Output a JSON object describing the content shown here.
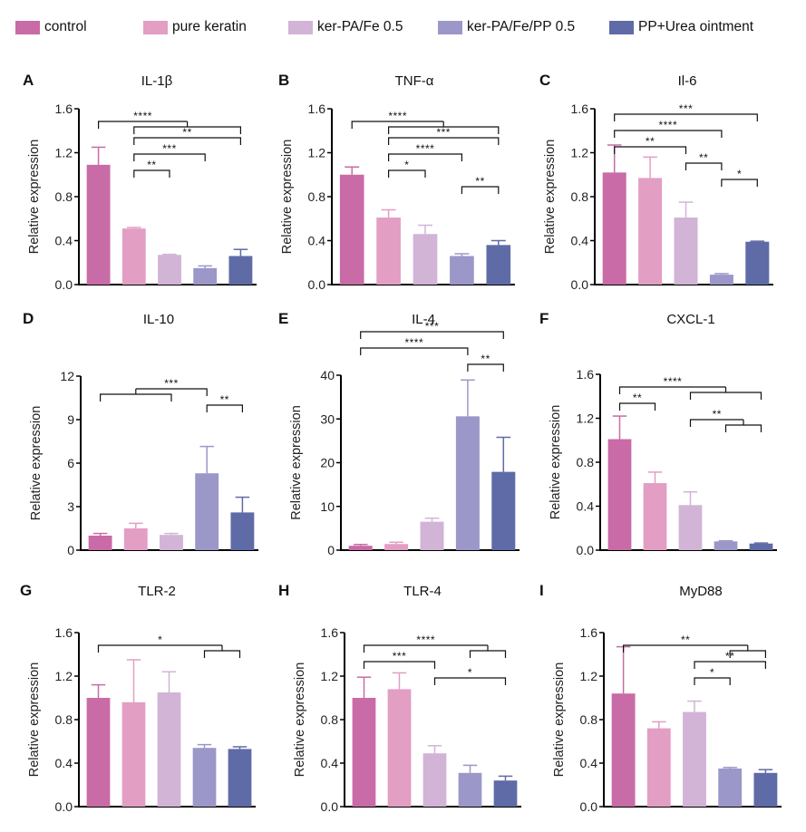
{
  "legend": [
    {
      "label": "control",
      "color": "#c96ba6"
    },
    {
      "label": "pure keratin",
      "color": "#e39ec4"
    },
    {
      "label": "ker-PA/Fe 0.5",
      "color": "#d1b4d6"
    },
    {
      "label": "ker-PA/Fe/PP 0.5",
      "color": "#9b97c8"
    },
    {
      "label": "PP+Urea ointment",
      "color": "#5f6ba6"
    }
  ],
  "chart_data": [
    {
      "type": "bar",
      "panel": "A",
      "title": "IL-1β",
      "xlabel": "",
      "ylabel": "Relative expression",
      "categories": [
        "control",
        "pure keratin",
        "ker-PA/Fe 0.5",
        "ker-PA/Fe/PP 0.5",
        "PP+Urea ointment"
      ],
      "values": [
        1.09,
        0.51,
        0.27,
        0.15,
        0.26
      ],
      "errors": [
        0.16,
        0.01,
        0.005,
        0.02,
        0.06
      ],
      "ylim": [
        0,
        1.6
      ],
      "yticks": [
        "0.0",
        "0.4",
        "0.8",
        "1.2",
        "1.6"
      ],
      "yticks_values": [
        0,
        0.4,
        0.8,
        1.2,
        1.6
      ],
      "significance": [
        {
          "from": [
            0
          ],
          "to": [
            1,
            4
          ],
          "label": "****"
        },
        {
          "from": [
            1
          ],
          "to": [
            4
          ],
          "label": "**"
        },
        {
          "from": [
            1
          ],
          "to": [
            3
          ],
          "label": "***"
        },
        {
          "from": [
            1
          ],
          "to": [
            2
          ],
          "label": "**"
        }
      ]
    },
    {
      "type": "bar",
      "panel": "B",
      "title": "TNF-α",
      "xlabel": "",
      "ylabel": "Relative expression",
      "categories": [
        "control",
        "pure keratin",
        "ker-PA/Fe 0.5",
        "ker-PA/Fe/PP 0.5",
        "PP+Urea ointment"
      ],
      "values": [
        1.0,
        0.61,
        0.46,
        0.26,
        0.36
      ],
      "errors": [
        0.07,
        0.07,
        0.08,
        0.02,
        0.04
      ],
      "ylim": [
        0,
        1.6
      ],
      "yticks": [
        "0.0",
        "0.4",
        "0.8",
        "1.2",
        "1.6"
      ],
      "yticks_values": [
        0,
        0.4,
        0.8,
        1.2,
        1.6
      ],
      "significance": [
        {
          "from": [
            0
          ],
          "to": [
            1,
            4
          ],
          "label": "****"
        },
        {
          "from": [
            1
          ],
          "to": [
            4
          ],
          "label": "***"
        },
        {
          "from": [
            1
          ],
          "to": [
            3
          ],
          "label": "****"
        },
        {
          "from": [
            1
          ],
          "to": [
            2
          ],
          "label": "*"
        },
        {
          "from": [
            3
          ],
          "to": [
            4
          ],
          "label": "**"
        }
      ]
    },
    {
      "type": "bar",
      "panel": "C",
      "title": "Il-6",
      "xlabel": "",
      "ylabel": "Relative expression",
      "categories": [
        "control",
        "pure keratin",
        "ker-PA/Fe 0.5",
        "ker-PA/Fe/PP 0.5",
        "PP+Urea ointment"
      ],
      "values": [
        1.02,
        0.97,
        0.61,
        0.09,
        0.39
      ],
      "errors": [
        0.25,
        0.19,
        0.14,
        0.01,
        0.005
      ],
      "ylim": [
        0,
        1.6
      ],
      "yticks": [
        "0.0",
        "0.4",
        "0.8",
        "1.2",
        "1.6"
      ],
      "yticks_values": [
        0,
        0.4,
        0.8,
        1.2,
        1.6
      ],
      "significance": [
        {
          "from": [
            0
          ],
          "to": [
            4
          ],
          "label": "***"
        },
        {
          "from": [
            0
          ],
          "to": [
            3
          ],
          "label": "****"
        },
        {
          "from": [
            0
          ],
          "to": [
            2
          ],
          "label": "**"
        },
        {
          "from": [
            2
          ],
          "to": [
            3
          ],
          "label": "**"
        },
        {
          "from": [
            3
          ],
          "to": [
            4
          ],
          "label": "*"
        }
      ]
    },
    {
      "type": "bar",
      "panel": "D",
      "title": "IL-10",
      "xlabel": "",
      "ylabel": "Relative expression",
      "categories": [
        "control",
        "pure keratin",
        "ker-PA/Fe 0.5",
        "ker-PA/Fe/PP 0.5",
        "PP+Urea ointment"
      ],
      "values": [
        1.0,
        1.5,
        1.05,
        5.3,
        2.6
      ],
      "errors": [
        0.15,
        0.35,
        0.1,
        1.85,
        1.05
      ],
      "ylim": [
        0,
        12
      ],
      "yticks": [
        "0",
        "3",
        "6",
        "9",
        "12"
      ],
      "yticks_values": [
        0,
        3,
        6,
        9,
        12
      ],
      "significance": [
        {
          "from": [
            0,
            2
          ],
          "to": [
            3
          ],
          "label": "***"
        },
        {
          "from": [
            3
          ],
          "to": [
            4
          ],
          "label": "**"
        }
      ]
    },
    {
      "type": "bar",
      "panel": "E",
      "title": "IL-4",
      "xlabel": "",
      "ylabel": "Relative expression",
      "categories": [
        "control",
        "pure keratin",
        "ker-PA/Fe 0.5",
        "ker-PA/Fe/PP 0.5",
        "PP+Urea ointment"
      ],
      "values": [
        1.0,
        1.4,
        6.5,
        30.6,
        17.9
      ],
      "errors": [
        0.3,
        0.4,
        0.8,
        8.3,
        7.9
      ],
      "ylim": [
        0,
        40
      ],
      "yticks": [
        "0",
        "10",
        "20",
        "30",
        "40"
      ],
      "yticks_values": [
        0,
        10,
        20,
        30,
        40
      ],
      "significance": [
        {
          "from": [
            0
          ],
          "to": [
            4
          ],
          "label": "***"
        },
        {
          "from": [
            0
          ],
          "to": [
            3
          ],
          "label": "****"
        },
        {
          "from": [
            3
          ],
          "to": [
            4
          ],
          "label": "**"
        }
      ]
    },
    {
      "type": "bar",
      "panel": "F",
      "title": "CXCL-1",
      "xlabel": "",
      "ylabel": "Relative expression",
      "categories": [
        "control",
        "pure keratin",
        "ker-PA/Fe 0.5",
        "ker-PA/Fe/PP 0.5",
        "PP+Urea ointment"
      ],
      "values": [
        1.01,
        0.61,
        0.41,
        0.08,
        0.06
      ],
      "errors": [
        0.21,
        0.1,
        0.12,
        0.005,
        0.005
      ],
      "ylim": [
        0,
        1.6
      ],
      "yticks": [
        "0.0",
        "0.4",
        "0.8",
        "1.2",
        "1.6"
      ],
      "yticks_values": [
        0,
        0.4,
        0.8,
        1.2,
        1.6
      ],
      "significance": [
        {
          "from": [
            0
          ],
          "to": [
            2,
            4
          ],
          "label": "****"
        },
        {
          "from": [
            0
          ],
          "to": [
            1
          ],
          "label": "**"
        },
        {
          "from": [
            2
          ],
          "to": [
            3,
            4
          ],
          "label": "**"
        }
      ]
    },
    {
      "type": "bar",
      "panel": "G",
      "title": "TLR-2",
      "xlabel": "",
      "ylabel": "Relative expression",
      "categories": [
        "control",
        "pure keratin",
        "ker-PA/Fe 0.5",
        "ker-PA/Fe/PP 0.5",
        "PP+Urea ointment"
      ],
      "values": [
        1.0,
        0.96,
        1.05,
        0.54,
        0.53
      ],
      "errors": [
        0.12,
        0.39,
        0.19,
        0.03,
        0.02
      ],
      "ylim": [
        0,
        1.6
      ],
      "yticks": [
        "0.0",
        "0.4",
        "0.8",
        "1.2",
        "1.6"
      ],
      "yticks_values": [
        0,
        0.4,
        0.8,
        1.2,
        1.6
      ],
      "significance": [
        {
          "from": [
            0
          ],
          "to": [
            3,
            4
          ],
          "label": "*"
        }
      ]
    },
    {
      "type": "bar",
      "panel": "H",
      "title": "TLR-4",
      "xlabel": "",
      "ylabel": "Relative expression",
      "categories": [
        "control",
        "pure keratin",
        "ker-PA/Fe 0.5",
        "ker-PA/Fe/PP 0.5",
        "PP+Urea ointment"
      ],
      "values": [
        1.0,
        1.08,
        0.49,
        0.31,
        0.24
      ],
      "errors": [
        0.19,
        0.15,
        0.07,
        0.07,
        0.04
      ],
      "ylim": [
        0,
        1.6
      ],
      "yticks": [
        "0.0",
        "0.4",
        "0.8",
        "1.2",
        "1.6"
      ],
      "yticks_values": [
        0,
        0.4,
        0.8,
        1.2,
        1.6
      ],
      "significance": [
        {
          "from": [
            0
          ],
          "to": [
            3,
            4
          ],
          "label": "****"
        },
        {
          "from": [
            0
          ],
          "to": [
            2
          ],
          "label": "***"
        },
        {
          "from": [
            2
          ],
          "to": [
            4
          ],
          "label": "*"
        }
      ]
    },
    {
      "type": "bar",
      "panel": "I",
      "title": "MyD88",
      "xlabel": "",
      "ylabel": "Relative expression",
      "categories": [
        "control",
        "pure keratin",
        "ker-PA/Fe 0.5",
        "ker-PA/Fe/PP 0.5",
        "PP+Urea ointment"
      ],
      "values": [
        1.04,
        0.72,
        0.87,
        0.35,
        0.31
      ],
      "errors": [
        0.43,
        0.06,
        0.1,
        0.01,
        0.03
      ],
      "ylim": [
        0,
        1.6
      ],
      "yticks": [
        "0.0",
        "0.4",
        "0.8",
        "1.2",
        "1.6"
      ],
      "yticks_values": [
        0,
        0.4,
        0.8,
        1.2,
        1.6
      ],
      "significance": [
        {
          "from": [
            0
          ],
          "to": [
            3,
            4
          ],
          "label": "**"
        },
        {
          "from": [
            2
          ],
          "to": [
            4
          ],
          "label": "**"
        },
        {
          "from": [
            2
          ],
          "to": [
            3
          ],
          "label": "*"
        }
      ]
    }
  ]
}
